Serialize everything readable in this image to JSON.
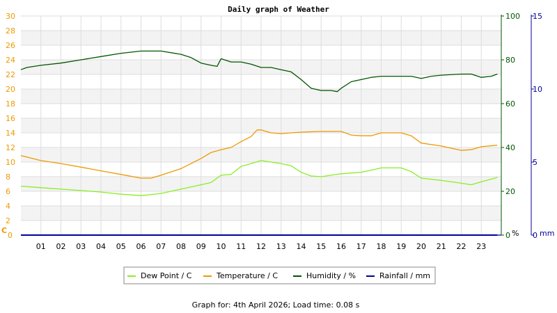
{
  "colors": {
    "temperature": "#ee9900",
    "dew_point": "#88ee22",
    "humidity": "#005500",
    "rainfall": "#000099",
    "left_axis": "#ee9900",
    "humidity_axis": "#005500",
    "rain_axis": "#000099"
  },
  "chart_data": {
    "type": "line",
    "title": "Daily graph of Weather",
    "x_ticks": [
      "01",
      "02",
      "03",
      "04",
      "05",
      "06",
      "07",
      "08",
      "09",
      "10",
      "11",
      "12",
      "13",
      "14",
      "15",
      "16",
      "17",
      "18",
      "19",
      "20",
      "21",
      "22",
      "23"
    ],
    "x_range": [
      0,
      24
    ],
    "axes": {
      "left": {
        "label": "C",
        "range": [
          0,
          30
        ],
        "ticks": [
          "0",
          "2",
          "4",
          "6",
          "8",
          "10",
          "12",
          "14",
          "16",
          "18",
          "20",
          "22",
          "24",
          "26",
          "28",
          "30"
        ]
      },
      "humidity": {
        "label": "%",
        "range": [
          0,
          100
        ],
        "ticks": [
          "0",
          "20",
          "40",
          "60",
          "80",
          "100"
        ]
      },
      "rainfall": {
        "label": "mm",
        "range": [
          0,
          15
        ],
        "ticks": [
          "0",
          "5",
          "10",
          "15"
        ]
      }
    },
    "grid": true,
    "legend_position": "bottom",
    "series": [
      {
        "name": "Dew Point / C",
        "key": "dew_point",
        "axis": "left",
        "points": [
          [
            0,
            6.7
          ],
          [
            1,
            6.5
          ],
          [
            2,
            6.3
          ],
          [
            3,
            6.1
          ],
          [
            4,
            5.9
          ],
          [
            5,
            5.6
          ],
          [
            6,
            5.4
          ],
          [
            7,
            5.7
          ],
          [
            8,
            6.3
          ],
          [
            9,
            6.9
          ],
          [
            9.5,
            7.2
          ],
          [
            10,
            8.2
          ],
          [
            10.5,
            8.3
          ],
          [
            11,
            9.4
          ],
          [
            12,
            10.2
          ],
          [
            12.5,
            10.0
          ],
          [
            13,
            9.8
          ],
          [
            13.5,
            9.5
          ],
          [
            14,
            8.6
          ],
          [
            14.5,
            8.1
          ],
          [
            15,
            8.0
          ],
          [
            15.5,
            8.2
          ],
          [
            16,
            8.4
          ],
          [
            17,
            8.6
          ],
          [
            17.5,
            8.9
          ],
          [
            18,
            9.2
          ],
          [
            19,
            9.2
          ],
          [
            19.5,
            8.7
          ],
          [
            20,
            7.8
          ],
          [
            21,
            7.5
          ],
          [
            22,
            7.1
          ],
          [
            22.5,
            6.9
          ],
          [
            23,
            7.3
          ],
          [
            23.8,
            7.9
          ]
        ]
      },
      {
        "name": "Temperature / C",
        "key": "temperature",
        "axis": "left",
        "points": [
          [
            0,
            10.9
          ],
          [
            1,
            10.2
          ],
          [
            2,
            9.8
          ],
          [
            3,
            9.3
          ],
          [
            4,
            8.8
          ],
          [
            5,
            8.3
          ],
          [
            6,
            7.8
          ],
          [
            6.5,
            7.8
          ],
          [
            7,
            8.2
          ],
          [
            8,
            9.1
          ],
          [
            9,
            10.5
          ],
          [
            9.5,
            11.3
          ],
          [
            10,
            11.7
          ],
          [
            10.5,
            12.0
          ],
          [
            11,
            12.8
          ],
          [
            11.5,
            13.5
          ],
          [
            11.8,
            14.4
          ],
          [
            12,
            14.4
          ],
          [
            12.5,
            14.0
          ],
          [
            13,
            13.9
          ],
          [
            13.5,
            14.0
          ],
          [
            14,
            14.1
          ],
          [
            15,
            14.2
          ],
          [
            15.5,
            14.2
          ],
          [
            16,
            14.2
          ],
          [
            16.5,
            13.7
          ],
          [
            17,
            13.6
          ],
          [
            17.5,
            13.6
          ],
          [
            18,
            14.0
          ],
          [
            19,
            14.0
          ],
          [
            19.5,
            13.6
          ],
          [
            20,
            12.6
          ],
          [
            21,
            12.2
          ],
          [
            22,
            11.6
          ],
          [
            22.5,
            11.7
          ],
          [
            23,
            12.1
          ],
          [
            23.8,
            12.3
          ]
        ]
      },
      {
        "name": "Humidity / %",
        "key": "humidity",
        "axis": "humidity",
        "points": [
          [
            0,
            75.5
          ],
          [
            0.3,
            76.5
          ],
          [
            1,
            77.5
          ],
          [
            2,
            78.5
          ],
          [
            3,
            80.0
          ],
          [
            4,
            81.5
          ],
          [
            5,
            83.0
          ],
          [
            6,
            84.0
          ],
          [
            7,
            84.0
          ],
          [
            8,
            82.5
          ],
          [
            8.5,
            81.0
          ],
          [
            9,
            78.5
          ],
          [
            9.5,
            77.5
          ],
          [
            9.8,
            77.0
          ],
          [
            10,
            80.5
          ],
          [
            10.5,
            79.0
          ],
          [
            11,
            79.0
          ],
          [
            11.5,
            78.0
          ],
          [
            12,
            76.5
          ],
          [
            12.5,
            76.5
          ],
          [
            13,
            75.5
          ],
          [
            13.5,
            74.5
          ],
          [
            14,
            71.0
          ],
          [
            14.5,
            67.0
          ],
          [
            15,
            66.0
          ],
          [
            15.5,
            66.0
          ],
          [
            15.8,
            65.5
          ],
          [
            16,
            67.0
          ],
          [
            16.5,
            70.0
          ],
          [
            17,
            71.0
          ],
          [
            17.5,
            72.0
          ],
          [
            18,
            72.5
          ],
          [
            19,
            72.5
          ],
          [
            19.5,
            72.5
          ],
          [
            20,
            71.5
          ],
          [
            20.5,
            72.5
          ],
          [
            21,
            73.0
          ],
          [
            22,
            73.5
          ],
          [
            22.5,
            73.5
          ],
          [
            23,
            72.0
          ],
          [
            23.5,
            72.5
          ],
          [
            23.8,
            73.5
          ]
        ]
      },
      {
        "name": "Rainfall / mm",
        "key": "rainfall",
        "axis": "rainfall",
        "points": [
          [
            0,
            0
          ],
          [
            23.8,
            0
          ]
        ]
      }
    ]
  },
  "footer": "Graph for: 4th April 2026; Load time: 0.08 s"
}
